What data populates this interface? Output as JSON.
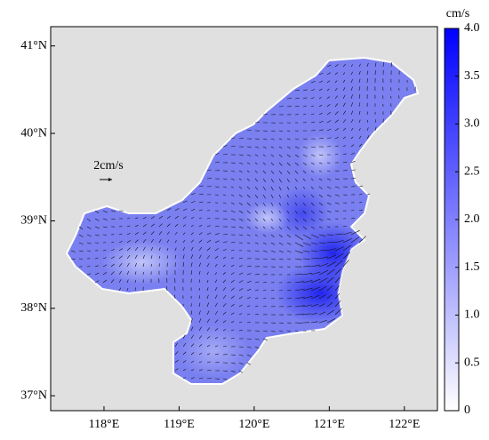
{
  "map": {
    "xlim": [
      117.29,
      122.44
    ],
    "ylim": [
      36.83,
      41.22
    ],
    "xticks": [
      {
        "value": 118,
        "label": "118°E"
      },
      {
        "value": 119,
        "label": "119°E"
      },
      {
        "value": 120,
        "label": "120°E"
      },
      {
        "value": 121,
        "label": "121°E"
      },
      {
        "value": 122,
        "label": "122°E"
      }
    ],
    "yticks": [
      {
        "value": 37,
        "label": "37°N"
      },
      {
        "value": 38,
        "label": "38°N"
      },
      {
        "value": 39,
        "label": "39°N"
      },
      {
        "value": 40,
        "label": "40°N"
      },
      {
        "value": 41,
        "label": "41°N"
      }
    ],
    "scale_label": "2cm/s",
    "colorbar": {
      "label": "cm/s",
      "lim": [
        0,
        4
      ],
      "colors": [
        "#ffffff",
        "#0000ff"
      ],
      "ticks": [
        0,
        0.5,
        {
          "value": 1,
          "label": "1.0"
        },
        1.5,
        {
          "value": 2,
          "label": "2.0"
        },
        2.5,
        {
          "value": 3,
          "label": "3.0"
        },
        3.5,
        {
          "value": 4,
          "label": "4.0"
        }
      ]
    }
  }
}
